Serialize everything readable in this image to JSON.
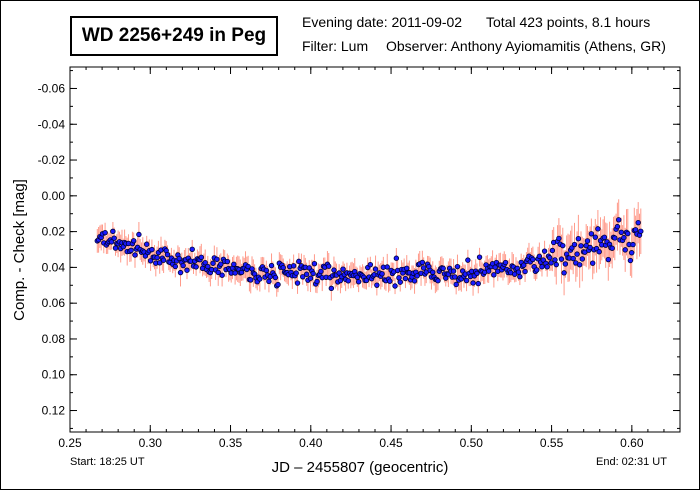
{
  "header": {
    "object": "WD 2256+249 in Peg",
    "evening_date": "Evening date: 2011-09-02",
    "total": "Total 423 points, 8.1 hours",
    "filter": "Filter: Lum",
    "observer": "Observer: Anthony Ayiomamitis (Athens, GR)"
  },
  "footer": {
    "start": "Start: 18:25 UT",
    "end": "End: 02:31 UT"
  },
  "colors": {
    "point_fill": "#1a1aff",
    "point_edge": "#000033",
    "error_bar": "#ff9a8a",
    "axis": "#000000"
  },
  "chart_data": {
    "type": "scatter",
    "title": "WD 2256+249 in Peg",
    "xlabel": "JD – 2455807  (geocentric)",
    "ylabel": "Comp. - Check [mag]",
    "xlim": [
      0.25,
      0.63
    ],
    "ylim": [
      0.132,
      -0.072
    ],
    "y_inverted": true,
    "xticks": [
      0.25,
      0.3,
      0.35,
      0.4,
      0.45,
      0.5,
      0.55,
      0.6
    ],
    "xtick_labels": [
      "0.25",
      "0.30",
      "0.35",
      "0.40",
      "0.45",
      "0.50",
      "0.55",
      "0.60"
    ],
    "yticks": [
      -0.06,
      -0.04,
      -0.02,
      0.0,
      0.02,
      0.04,
      0.06,
      0.08,
      0.1,
      0.12
    ],
    "ytick_labels": [
      "-0.06",
      "-0.04",
      "-0.02",
      "0.00",
      "0.02",
      "0.04",
      "0.06",
      "0.08",
      "0.10",
      "0.12"
    ],
    "series": [
      {
        "name": "Comp. - Check",
        "x_start": 0.267,
        "x_step": 0.00081,
        "count": 423,
        "trend": [
          [
            0.267,
            0.022
          ],
          [
            0.3,
            0.032
          ],
          [
            0.33,
            0.038
          ],
          [
            0.36,
            0.042
          ],
          [
            0.4,
            0.044
          ],
          [
            0.45,
            0.044
          ],
          [
            0.5,
            0.043
          ],
          [
            0.53,
            0.04
          ],
          [
            0.55,
            0.034
          ],
          [
            0.57,
            0.03
          ],
          [
            0.59,
            0.025
          ],
          [
            0.605,
            0.024
          ]
        ],
        "scatter_amplitude": 0.009,
        "error_bar": 0.006
      }
    ]
  }
}
